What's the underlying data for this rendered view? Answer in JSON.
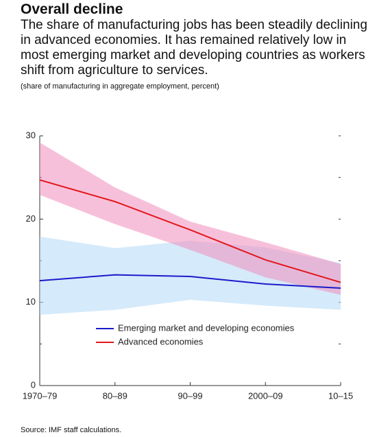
{
  "chart_data": {
    "type": "line",
    "title": "Overall decline",
    "subtitle": "The share of manufacturing jobs has been steadily declining in advanced economies. It has remained relatively low in most emerging market and developing countries as workers shift from agriculture to services.",
    "note": "(share of manufacturing in aggregate employment, percent)",
    "source": "Source: IMF staff calculations.",
    "categories": [
      "1970–79",
      "80–89",
      "90–99",
      "2000–09",
      "10–15"
    ],
    "ylim": [
      0,
      30
    ],
    "yticks": [
      0,
      10,
      20,
      30
    ],
    "minor_yticks": [
      5,
      15,
      25
    ],
    "series": [
      {
        "name": "Emerging market and developing economies",
        "color": "#1a1acc",
        "band_color": "#b3d8f5",
        "values": [
          12.6,
          13.3,
          13.1,
          12.2,
          11.7
        ],
        "band": {
          "upper": [
            17.9,
            16.5,
            17.4,
            16.6,
            14.7
          ],
          "lower": [
            8.5,
            9.1,
            10.3,
            9.6,
            9.1
          ]
        }
      },
      {
        "name": "Advanced economies",
        "color": "#e3161b",
        "band_color": "#f08cbc",
        "values": [
          24.7,
          22.1,
          18.7,
          15.1,
          12.4
        ],
        "band": {
          "upper": [
            29.2,
            23.8,
            19.7,
            17.2,
            14.6
          ],
          "lower": [
            22.9,
            19.4,
            16.3,
            13.0,
            10.9
          ]
        }
      }
    ]
  }
}
